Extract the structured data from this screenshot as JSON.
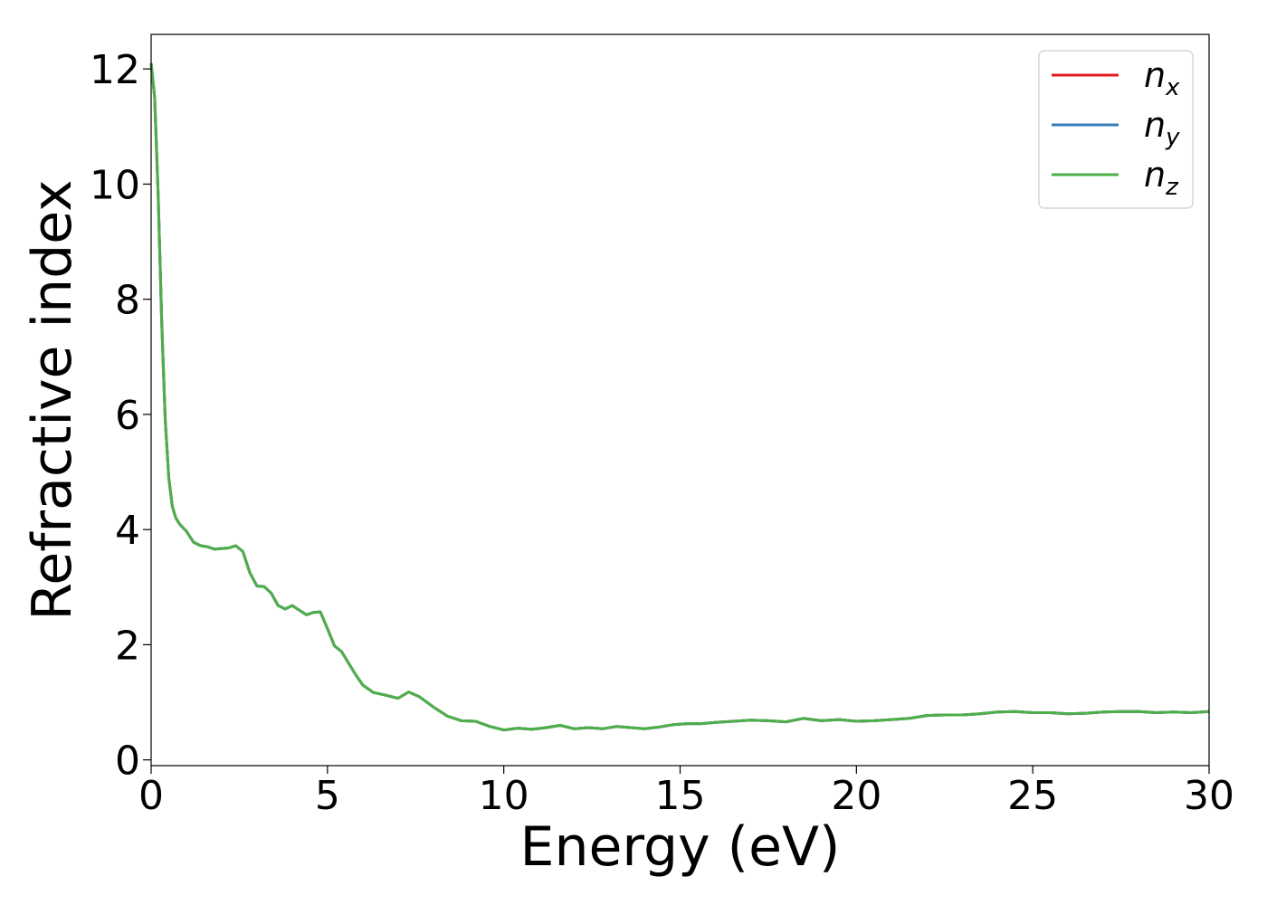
{
  "chart_data": {
    "type": "line",
    "title": "",
    "xlabel": "Energy (eV)",
    "ylabel": "Refractive index",
    "xlim": [
      0,
      30
    ],
    "ylim": [
      -0.1,
      12.6
    ],
    "xticks": [
      0,
      5,
      10,
      15,
      20,
      25,
      30
    ],
    "yticks": [
      0,
      2,
      4,
      6,
      8,
      10,
      12
    ],
    "xtick_labels": [
      "0",
      "5",
      "10",
      "15",
      "20",
      "25",
      "30"
    ],
    "ytick_labels": [
      "0",
      "2",
      "4",
      "6",
      "8",
      "10",
      "12"
    ],
    "grid": false,
    "legend_position": "top-right",
    "x": [
      0.0,
      0.1,
      0.2,
      0.3,
      0.4,
      0.5,
      0.6,
      0.7,
      0.8,
      1.0,
      1.2,
      1.4,
      1.6,
      1.8,
      2.0,
      2.2,
      2.4,
      2.6,
      2.8,
      3.0,
      3.2,
      3.4,
      3.6,
      3.8,
      4.0,
      4.2,
      4.4,
      4.6,
      4.8,
      5.0,
      5.2,
      5.4,
      5.6,
      5.8,
      6.0,
      6.3,
      6.6,
      7.0,
      7.3,
      7.6,
      8.0,
      8.4,
      8.8,
      9.2,
      9.6,
      10.0,
      10.4,
      10.8,
      11.2,
      11.6,
      12.0,
      12.4,
      12.8,
      13.2,
      13.6,
      14.0,
      14.4,
      14.8,
      15.2,
      15.6,
      16.0,
      16.5,
      17.0,
      17.5,
      18.0,
      18.5,
      19.0,
      19.5,
      20.0,
      20.5,
      21.0,
      21.5,
      22.0,
      22.5,
      23.0,
      23.5,
      24.0,
      24.5,
      25.0,
      25.5,
      26.0,
      26.5,
      27.0,
      27.5,
      28.0,
      28.5,
      29.0,
      29.5,
      30.0
    ],
    "series": [
      {
        "name": "n_x",
        "color": "#e41a1c",
        "values": [
          12.1,
          11.5,
          9.8,
          7.6,
          5.9,
          4.9,
          4.4,
          4.2,
          4.1,
          3.97,
          3.78,
          3.72,
          3.7,
          3.66,
          3.67,
          3.68,
          3.72,
          3.62,
          3.25,
          3.02,
          3.01,
          2.9,
          2.68,
          2.62,
          2.68,
          2.6,
          2.52,
          2.56,
          2.57,
          2.28,
          1.98,
          1.88,
          1.68,
          1.48,
          1.3,
          1.17,
          1.13,
          1.07,
          1.18,
          1.1,
          0.92,
          0.76,
          0.68,
          0.67,
          0.58,
          0.52,
          0.55,
          0.53,
          0.56,
          0.6,
          0.54,
          0.56,
          0.54,
          0.58,
          0.56,
          0.54,
          0.57,
          0.61,
          0.63,
          0.63,
          0.65,
          0.67,
          0.69,
          0.68,
          0.66,
          0.72,
          0.68,
          0.7,
          0.67,
          0.68,
          0.7,
          0.72,
          0.77,
          0.78,
          0.78,
          0.8,
          0.83,
          0.84,
          0.82,
          0.82,
          0.8,
          0.81,
          0.83,
          0.84,
          0.84,
          0.82,
          0.83,
          0.82,
          0.84
        ]
      },
      {
        "name": "n_y",
        "color": "#377eb8",
        "values": [
          12.1,
          11.5,
          9.8,
          7.6,
          5.9,
          4.9,
          4.4,
          4.2,
          4.1,
          3.97,
          3.78,
          3.72,
          3.7,
          3.66,
          3.67,
          3.68,
          3.72,
          3.62,
          3.25,
          3.02,
          3.01,
          2.9,
          2.68,
          2.62,
          2.68,
          2.6,
          2.52,
          2.56,
          2.57,
          2.28,
          1.98,
          1.88,
          1.68,
          1.48,
          1.3,
          1.17,
          1.13,
          1.07,
          1.18,
          1.1,
          0.92,
          0.76,
          0.68,
          0.67,
          0.58,
          0.52,
          0.55,
          0.53,
          0.56,
          0.6,
          0.54,
          0.56,
          0.54,
          0.58,
          0.56,
          0.54,
          0.57,
          0.61,
          0.63,
          0.63,
          0.65,
          0.67,
          0.69,
          0.68,
          0.66,
          0.72,
          0.68,
          0.7,
          0.67,
          0.68,
          0.7,
          0.72,
          0.77,
          0.78,
          0.78,
          0.8,
          0.83,
          0.84,
          0.82,
          0.82,
          0.8,
          0.81,
          0.83,
          0.84,
          0.84,
          0.82,
          0.83,
          0.82,
          0.84
        ]
      },
      {
        "name": "n_z",
        "color": "#4daf4a",
        "values": [
          12.1,
          11.5,
          9.8,
          7.6,
          5.9,
          4.9,
          4.4,
          4.2,
          4.1,
          3.97,
          3.78,
          3.72,
          3.7,
          3.66,
          3.67,
          3.68,
          3.72,
          3.62,
          3.25,
          3.02,
          3.01,
          2.9,
          2.68,
          2.62,
          2.68,
          2.6,
          2.52,
          2.56,
          2.57,
          2.28,
          1.98,
          1.88,
          1.68,
          1.48,
          1.3,
          1.17,
          1.13,
          1.07,
          1.18,
          1.1,
          0.92,
          0.76,
          0.68,
          0.67,
          0.58,
          0.52,
          0.55,
          0.53,
          0.56,
          0.6,
          0.54,
          0.56,
          0.54,
          0.58,
          0.56,
          0.54,
          0.57,
          0.61,
          0.63,
          0.63,
          0.65,
          0.67,
          0.69,
          0.68,
          0.66,
          0.72,
          0.68,
          0.7,
          0.67,
          0.68,
          0.7,
          0.72,
          0.77,
          0.78,
          0.78,
          0.8,
          0.83,
          0.84,
          0.82,
          0.82,
          0.8,
          0.81,
          0.83,
          0.84,
          0.84,
          0.82,
          0.83,
          0.82,
          0.84
        ]
      }
    ],
    "legend": [
      {
        "base": "n",
        "sub": "x",
        "color": "#e41a1c"
      },
      {
        "base": "n",
        "sub": "y",
        "color": "#377eb8"
      },
      {
        "base": "n",
        "sub": "z",
        "color": "#4daf4a"
      }
    ]
  }
}
